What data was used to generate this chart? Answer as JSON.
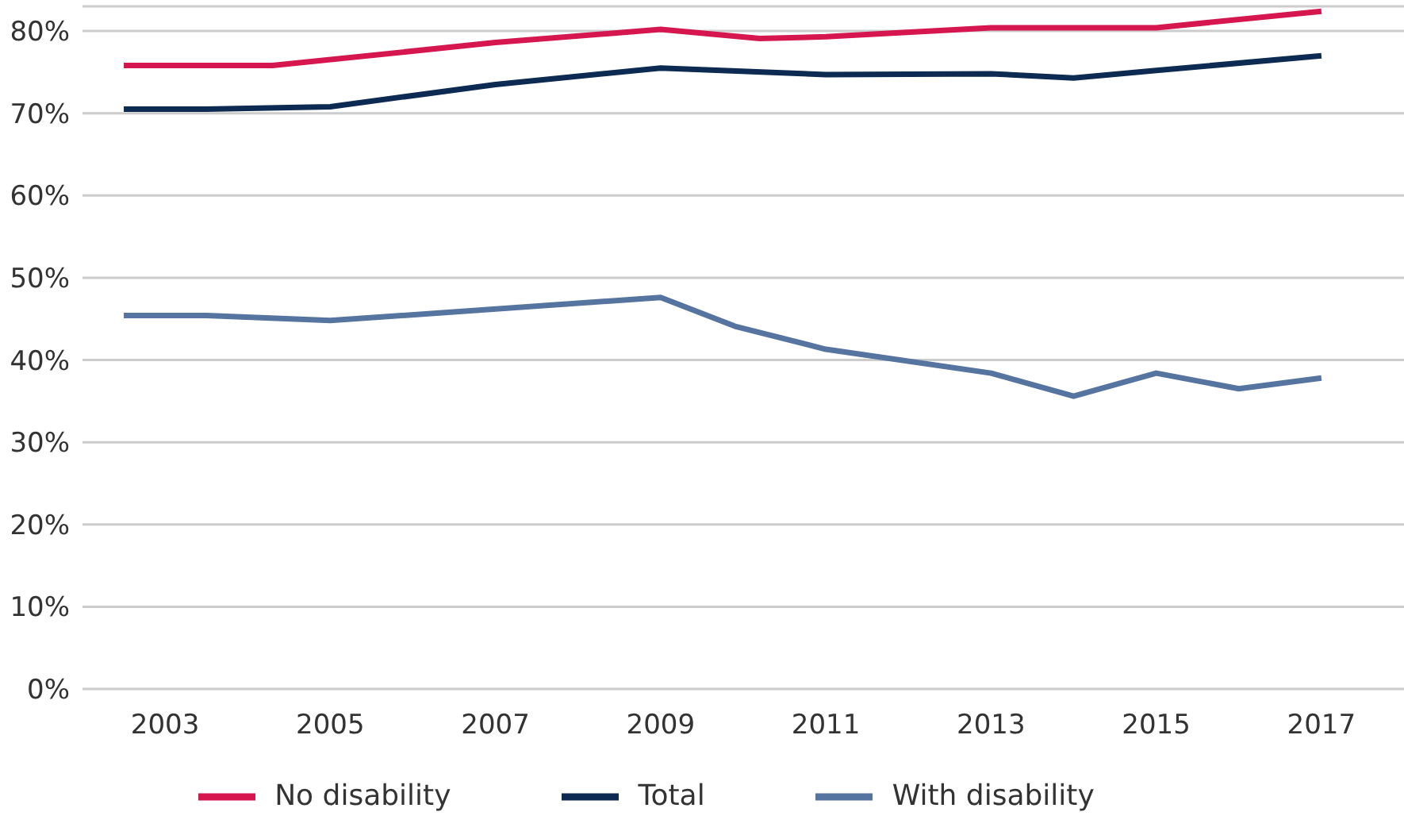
{
  "chart_data": {
    "type": "line",
    "xlim": [
      2002,
      2018
    ],
    "xticks": [
      2003,
      2005,
      2007,
      2009,
      2011,
      2013,
      2015,
      2017
    ],
    "ylim": [
      0,
      83
    ],
    "yticks": [
      {
        "value": 0,
        "label": "0%"
      },
      {
        "value": 10,
        "label": "10%"
      },
      {
        "value": 20,
        "label": "20%"
      },
      {
        "value": 30,
        "label": "30%"
      },
      {
        "value": 40,
        "label": "40%"
      },
      {
        "value": 50,
        "label": "50%"
      },
      {
        "value": 60,
        "label": "60%"
      },
      {
        "value": 70,
        "label": "70%"
      },
      {
        "value": 80,
        "label": "80%"
      }
    ],
    "grid": "y",
    "legend": "bottom",
    "marker": "none",
    "line_style": "solid",
    "series": [
      {
        "name": "Total",
        "color": "#0d2a52",
        "x": [
          2002.5,
          2003.5,
          2005,
          2007,
          2009,
          2011,
          2013,
          2014,
          2015,
          2017
        ],
        "values": [
          70.5,
          70.5,
          70.8,
          73.5,
          75.5,
          74.7,
          74.8,
          74.3,
          75.2,
          77.0
        ]
      },
      {
        "name": "No disability",
        "color": "#d6174f",
        "x": [
          2002.5,
          2004.3,
          2007,
          2009,
          2010.2,
          2011,
          2013,
          2015,
          2017
        ],
        "values": [
          75.8,
          75.8,
          78.6,
          80.2,
          79.1,
          79.3,
          80.4,
          80.4,
          82.4
        ]
      },
      {
        "name": "With disability",
        "color": "#5674a0",
        "x": [
          2002.5,
          2003.5,
          2005,
          2009,
          2009.9,
          2011,
          2013,
          2014,
          2015,
          2016,
          2017
        ],
        "values": [
          45.4,
          45.4,
          44.8,
          47.6,
          44.1,
          41.3,
          38.4,
          35.6,
          38.4,
          36.5,
          37.8
        ]
      }
    ]
  }
}
